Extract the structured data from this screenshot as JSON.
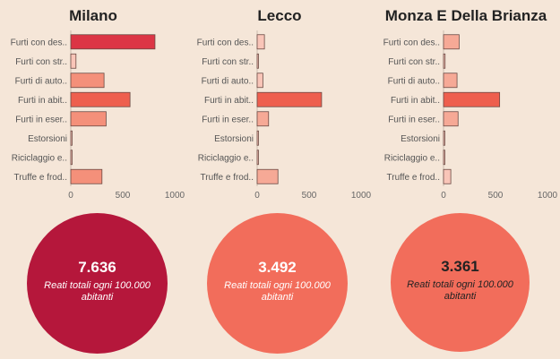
{
  "axis": {
    "ticks": [
      "0",
      "500",
      "1000"
    ],
    "max": 1000
  },
  "categories": [
    "Furti con des..",
    "Furti con str..",
    "Furti di auto..",
    "Furti in abit..",
    "Furti in eser..",
    "Estorsioni",
    "Riciclaggio e..",
    "Truffe e frod.."
  ],
  "caption": "Reati totali ogni 100.000 abitanti",
  "panels": [
    {
      "city": "Milano",
      "total": "7.636",
      "circle_color": "#b5173b",
      "text_color": "#ffffff"
    },
    {
      "city": "Lecco",
      "total": "3.492",
      "circle_color": "#f26d5b",
      "text_color": "#ffffff"
    },
    {
      "city": "Monza E Della Brianza",
      "total": "3.361",
      "circle_color": "#f26d5b",
      "text_color": "#222222"
    }
  ],
  "chart_data": [
    {
      "type": "bar",
      "title": "Milano",
      "categories": [
        "Furti con des..",
        "Furti con str..",
        "Furti di auto..",
        "Furti in abit..",
        "Furti in eser..",
        "Estorsioni",
        "Riciclaggio e..",
        "Truffe e frod.."
      ],
      "values": [
        810,
        50,
        320,
        570,
        340,
        10,
        5,
        300
      ],
      "xlim": [
        0,
        1000
      ]
    },
    {
      "type": "bar",
      "title": "Lecco",
      "categories": [
        "Furti con des..",
        "Furti con str..",
        "Furti di auto..",
        "Furti in abit..",
        "Furti in eser..",
        "Estorsioni",
        "Riciclaggio e..",
        "Truffe e frod.."
      ],
      "values": [
        70,
        8,
        55,
        620,
        110,
        12,
        5,
        200
      ],
      "xlim": [
        0,
        1000
      ]
    },
    {
      "type": "bar",
      "title": "Monza E Della Brianza",
      "categories": [
        "Furti con des..",
        "Furti con str..",
        "Furti di auto..",
        "Furti in abit..",
        "Furti in eser..",
        "Estorsioni",
        "Riciclaggio e..",
        "Truffe e frod.."
      ],
      "values": [
        150,
        15,
        130,
        540,
        140,
        8,
        5,
        70
      ],
      "xlim": [
        0,
        1000
      ]
    }
  ]
}
